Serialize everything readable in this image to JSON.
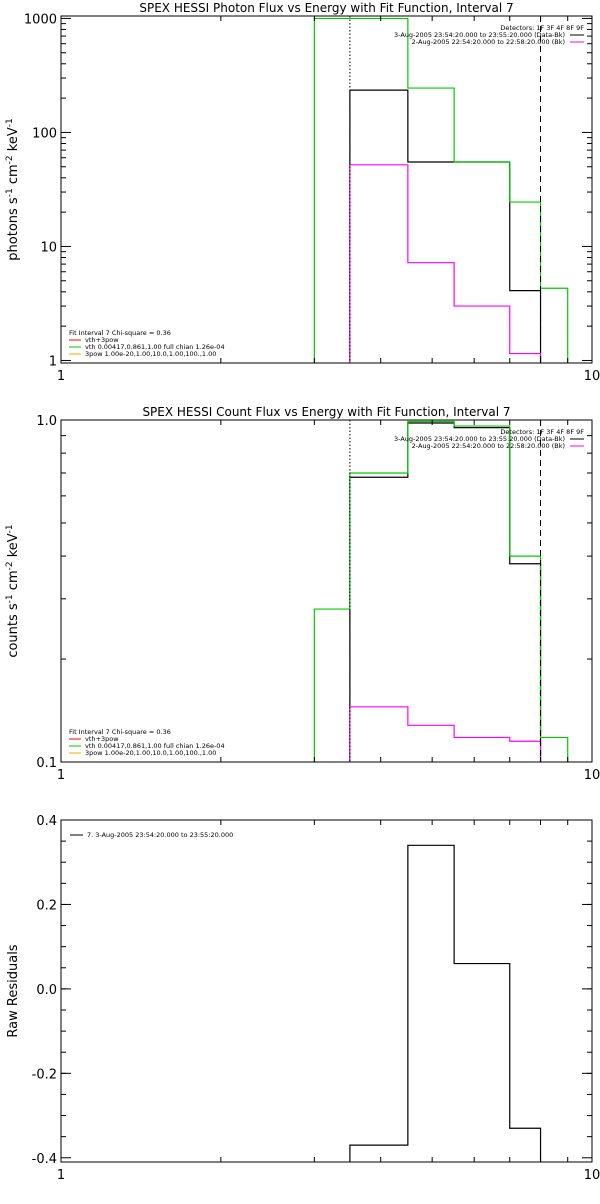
{
  "chart_data": [
    {
      "type": "line",
      "title": "SPEX HESSI Photon Flux vs Energy with Fit Function, Interval 7",
      "ylabel_parts": [
        "photons s",
        "-1",
        " cm",
        "-2",
        " keV",
        "-1"
      ],
      "xscale": "log",
      "yscale": "log",
      "xlim": [
        1,
        10
      ],
      "ylim": [
        0.95,
        1050
      ],
      "xticks": [
        {
          "v": 1,
          "label": "1"
        },
        {
          "v": 10,
          "label": "10"
        }
      ],
      "yticks": [
        {
          "v": 1,
          "label": "1"
        },
        {
          "v": 10,
          "label": "10"
        },
        {
          "v": 100,
          "label": "100"
        },
        {
          "v": 1000,
          "label": "1000"
        }
      ],
      "vlines": [
        {
          "x": 3.5,
          "style": "dotted",
          "color": "#000000"
        },
        {
          "x": 8.0,
          "style": "dashed",
          "color": "#000000"
        }
      ],
      "series": [
        {
          "color": "#000000",
          "edges": [
            3.5,
            4.5,
            5.5,
            7.0,
            8.0
          ],
          "values": [
            235,
            55,
            55,
            4.1
          ]
        },
        {
          "color": "#00cc00",
          "edges": [
            3.0,
            3.5,
            4.5,
            5.5,
            7.0,
            8.0,
            9.0
          ],
          "values": [
            1000,
            1000,
            245,
            55,
            24.5,
            4.3,
            0.97
          ]
        },
        {
          "color": "#ff00ff",
          "edges": [
            3.5,
            4.5,
            5.5,
            7.0,
            8.0
          ],
          "values": [
            52,
            7.2,
            3.0,
            1.15
          ]
        }
      ],
      "legend_right": [
        {
          "text": "Detectors: 1F 3F 4F 8F 9F",
          "color": null
        },
        {
          "text": "3-Aug-2005 23:54:20.000 to 23:55:20.000 (Data-Bk)",
          "color": "#000000"
        },
        {
          "text": "2-Aug-2005 22:54:20.000 to 22:58:20.000 (Bk)",
          "color": "#ff00ff"
        }
      ],
      "legend_left": [
        {
          "text": "Fit Interval 7   Chi-square = 0.36",
          "color": null
        },
        {
          "text": "vth+3pow",
          "color": "#ff0000"
        },
        {
          "text": "vth 0.00417,0.861,1.00   full chian 1.26e-04",
          "color": "#00cc00"
        },
        {
          "text": "3pow 1.00e-20,1.00,10.0,1.00,100.,1.00",
          "color": "#ffaa00"
        }
      ]
    },
    {
      "type": "line",
      "title": "SPEX HESSI Count Flux vs Energy with Fit Function, Interval 7",
      "ylabel_parts": [
        "counts s",
        "-1",
        " cm",
        "-2",
        " keV",
        "-1"
      ],
      "xscale": "log",
      "yscale": "log",
      "xlim": [
        1,
        10
      ],
      "ylim": [
        0.1,
        1.0
      ],
      "xticks": [
        {
          "v": 1,
          "label": "1"
        },
        {
          "v": 10,
          "label": "10"
        }
      ],
      "yticks": [
        {
          "v": 0.1,
          "label": "0.1"
        },
        {
          "v": 1.0,
          "label": "1.0"
        }
      ],
      "vlines": [
        {
          "x": 3.5,
          "style": "dotted",
          "color": "#000000"
        },
        {
          "x": 8.0,
          "style": "dashed",
          "color": "#000000"
        }
      ],
      "series": [
        {
          "color": "#000000",
          "edges": [
            3.5,
            4.5,
            5.5,
            7.0,
            8.0
          ],
          "values": [
            0.68,
            0.98,
            0.95,
            0.38
          ]
        },
        {
          "color": "#00cc00",
          "edges": [
            3.0,
            3.5,
            4.5,
            5.5,
            7.0,
            8.0,
            9.0
          ],
          "values": [
            0.28,
            0.7,
            0.99,
            0.96,
            0.4,
            0.118
          ]
        },
        {
          "color": "#ff00ff",
          "edges": [
            3.5,
            4.5,
            5.5,
            7.0,
            8.0
          ],
          "values": [
            0.145,
            0.128,
            0.118,
            0.115
          ]
        }
      ],
      "legend_right": [
        {
          "text": "Detectors: 1F 3F 4F 8F 9F",
          "color": null
        },
        {
          "text": "3-Aug-2005 23:54:20.000 to 23:55:20.000 (Data-Bk)",
          "color": "#000000"
        },
        {
          "text": "2-Aug-2005 22:54:20.000 to 22:58:20.000 (Bk)",
          "color": "#ff00ff"
        }
      ],
      "legend_left": [
        {
          "text": "Fit Interval 7   Chi-square = 0.36",
          "color": null
        },
        {
          "text": "vth+3pow",
          "color": "#ff0000"
        },
        {
          "text": "vth 0.00417,0.861,1.00   full chian 1.26e-04",
          "color": "#00cc00"
        },
        {
          "text": "3pow 1.00e-20,1.00,10.0,1.00,100.,1.00",
          "color": "#ffaa00"
        }
      ]
    },
    {
      "type": "line",
      "title": "",
      "ylabel_parts": [
        "Raw Residuals"
      ],
      "xscale": "log",
      "yscale": "linear",
      "xlim": [
        1,
        10
      ],
      "ylim": [
        -0.41,
        0.4
      ],
      "xticks": [
        {
          "v": 1,
          "label": "1"
        },
        {
          "v": 10,
          "label": "10"
        }
      ],
      "yticks": [
        {
          "v": -0.4,
          "label": "-0.4"
        },
        {
          "v": -0.2,
          "label": "-0.2"
        },
        {
          "v": 0.0,
          "label": "0.0"
        },
        {
          "v": 0.2,
          "label": "0.2"
        },
        {
          "v": 0.4,
          "label": "0.4"
        }
      ],
      "vlines": [],
      "series": [
        {
          "color": "#000000",
          "edges": [
            3.5,
            4.5,
            5.5,
            7.0,
            8.0
          ],
          "values": [
            -0.37,
            0.34,
            0.06,
            -0.33
          ]
        }
      ],
      "legend_right": [],
      "legend_left": [],
      "legend_top": [
        {
          "text": "7.  3-Aug-2005 23:54:20.000 to 23:55:20.000",
          "color": "#000000"
        }
      ]
    }
  ]
}
